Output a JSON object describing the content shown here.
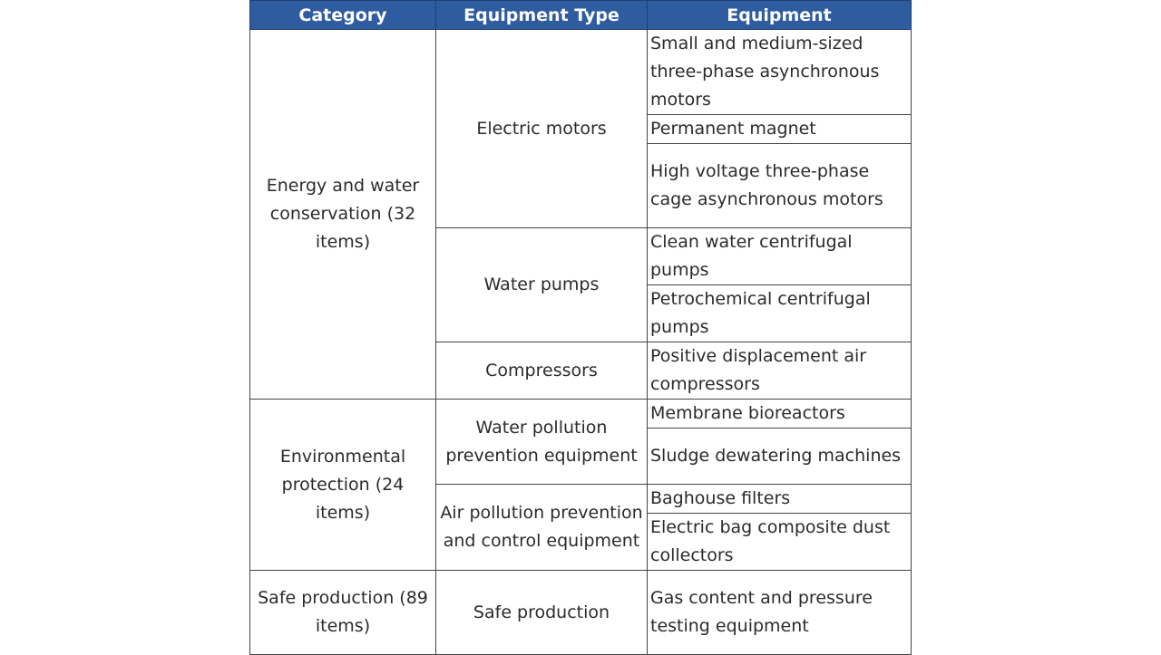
{
  "header": {
    "category": "Category",
    "equipment_type": "Equipment Type",
    "equipment": "Equipment"
  },
  "rows": {
    "energy": {
      "category": "Energy and water conservation (32 items)",
      "electric_motors": {
        "type": "Electric motors",
        "items": [
          "Small and medium-sized three-phase asynchronous motors",
          "Permanent magnet",
          "High voltage three-phase cage asynchronous motors"
        ]
      },
      "water_pumps": {
        "type": "Water pumps",
        "items": [
          "Clean water centrifugal pumps",
          "Petrochemical centrifugal pumps"
        ]
      },
      "compressors": {
        "type": "Compressors",
        "items": [
          "Positive displacement air compressors"
        ]
      }
    },
    "environmental": {
      "category": "Environmental protection (24 items)",
      "water_pollution": {
        "type": "Water pollution prevention equipment",
        "items": [
          "Membrane bioreactors",
          "Sludge dewatering machines"
        ]
      },
      "air_pollution": {
        "type": "Air pollution prevention and control equipment",
        "items": [
          "Baghouse filters",
          "Electric bag composite dust collectors"
        ]
      }
    },
    "safe": {
      "category": "Safe production (89 items)",
      "safe_production": {
        "type": "Safe production",
        "items": [
          "Gas content and pressure testing equipment"
        ]
      }
    }
  },
  "colors": {
    "header_bg": "#2e5c9e",
    "header_text": "#ffffff",
    "border": "#444444",
    "text": "#2b2b2b"
  }
}
